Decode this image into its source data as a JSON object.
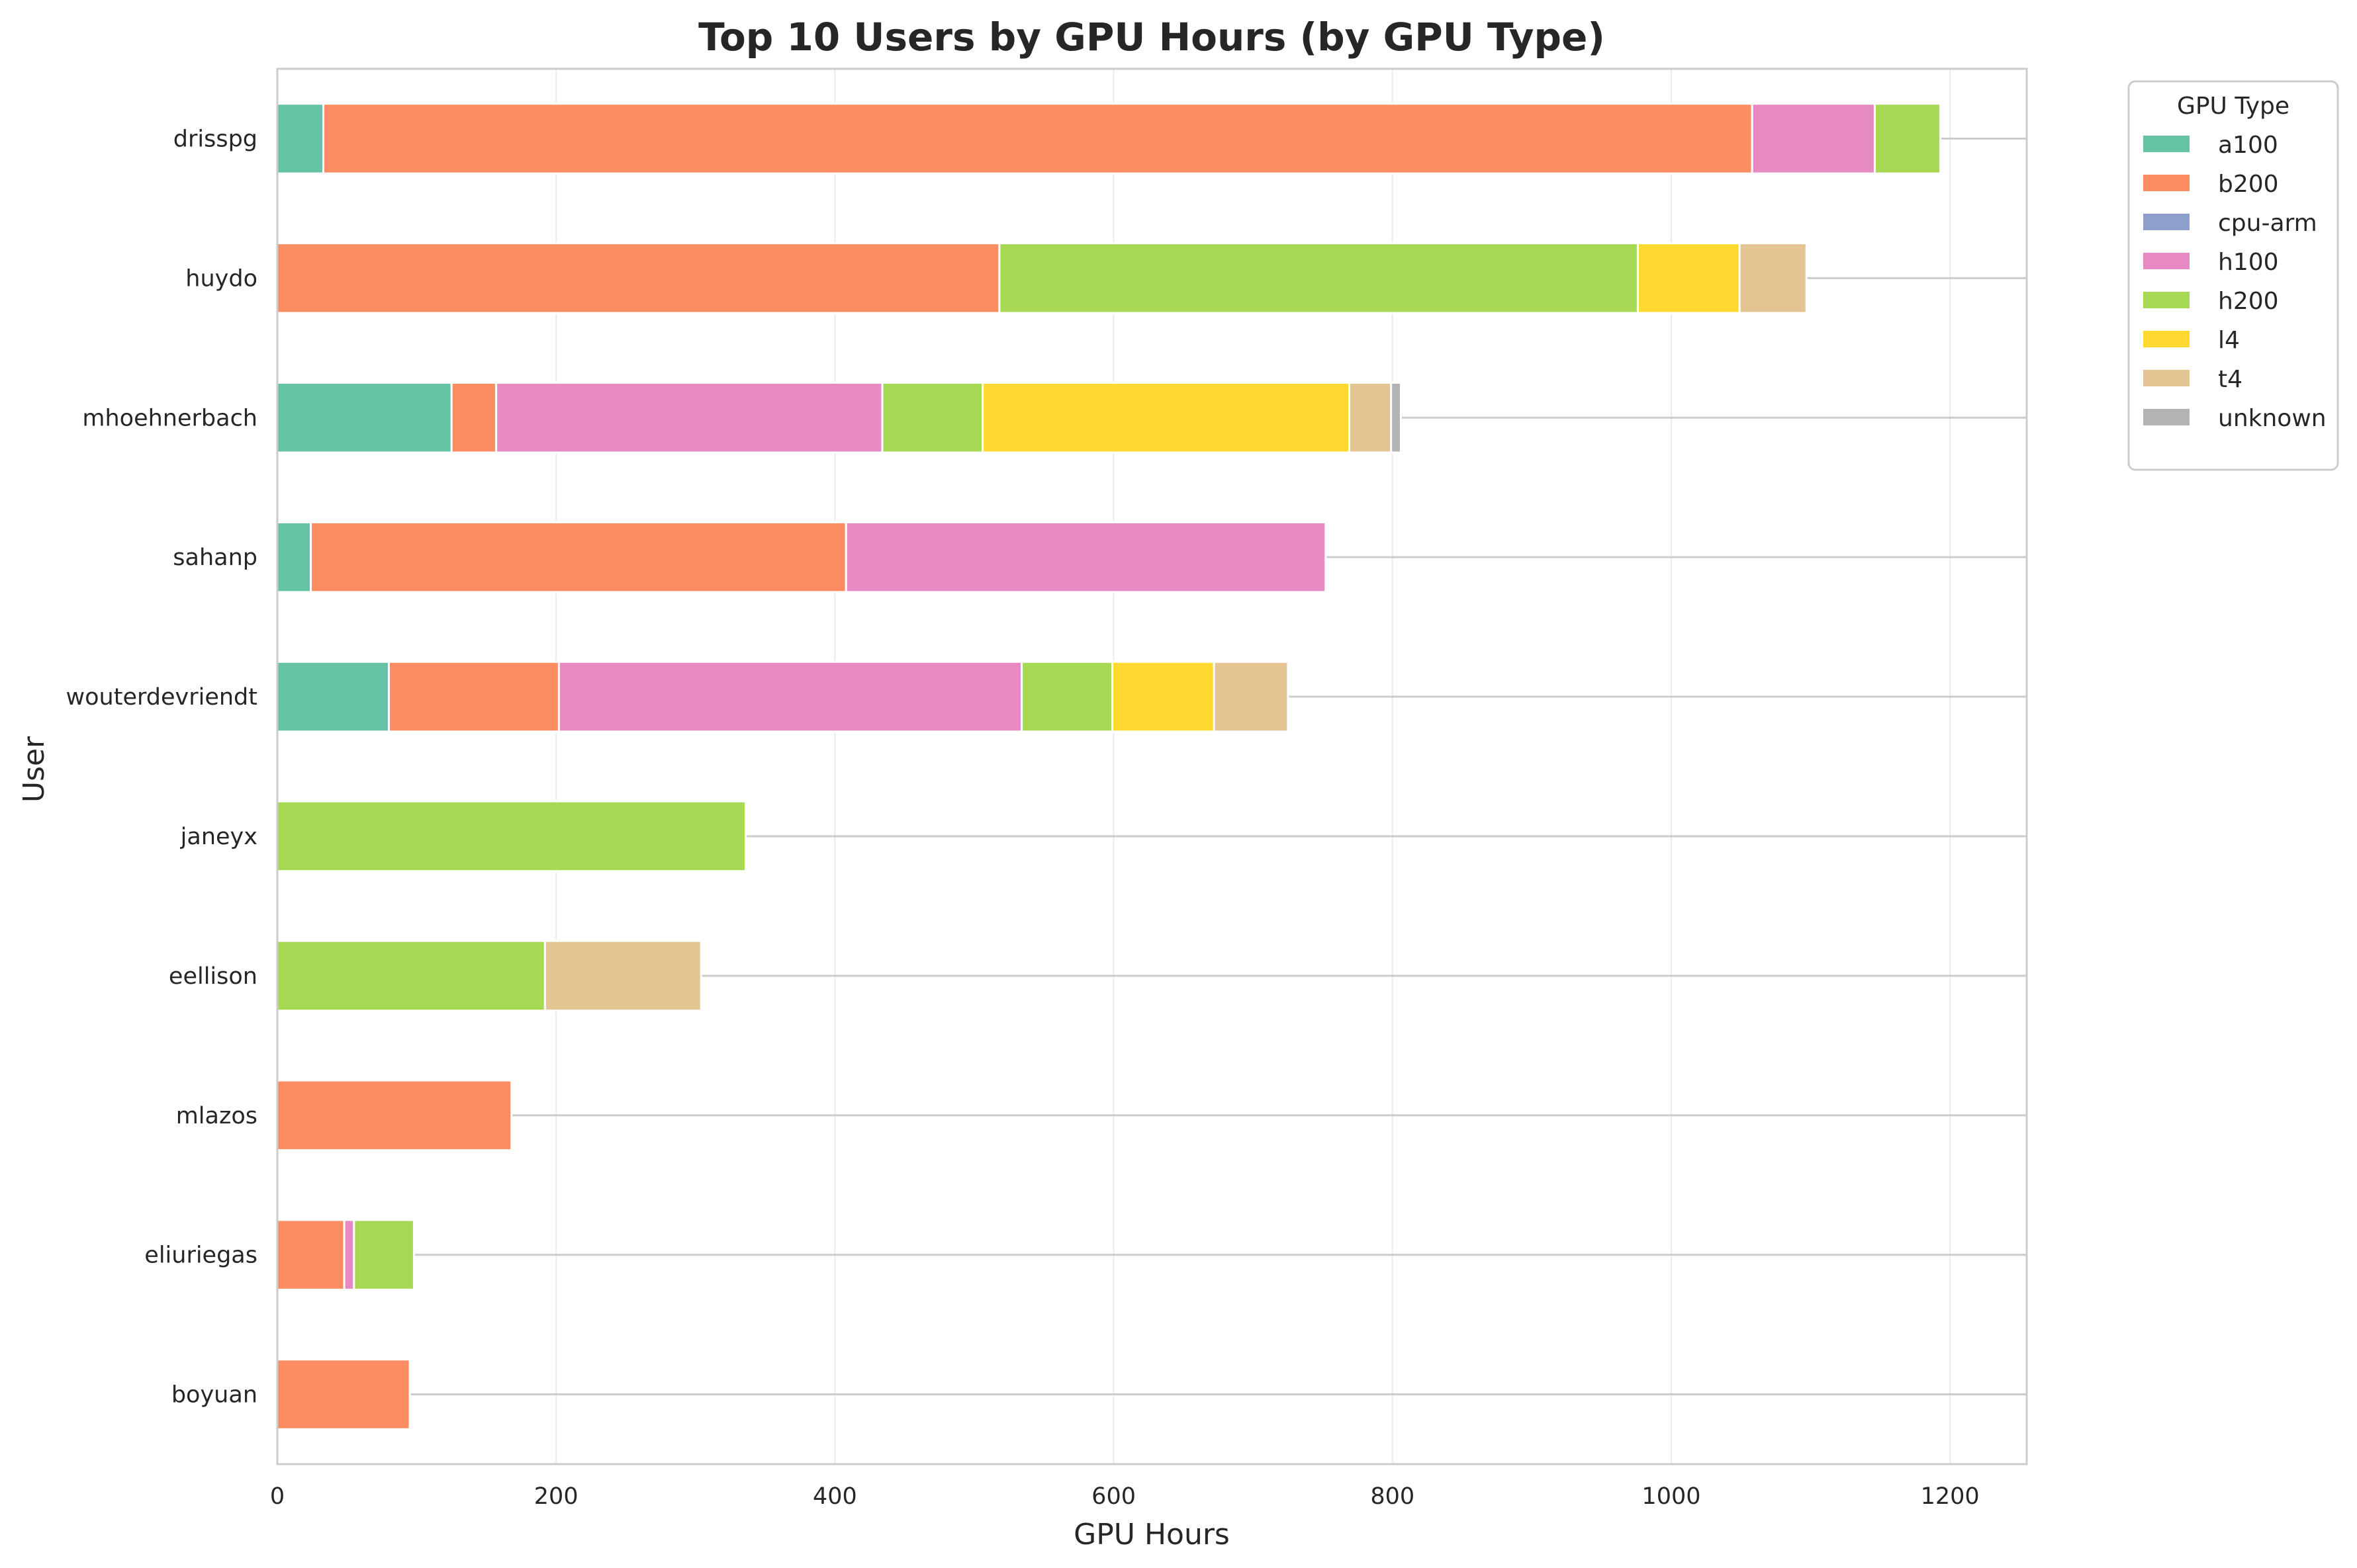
{
  "chart_data": {
    "type": "bar",
    "orientation": "horizontal",
    "stacked": true,
    "title": "Top 10 Users by GPU Hours (by GPU Type)",
    "xlabel": "GPU Hours",
    "ylabel": "User",
    "xlim": [
      0,
      1255
    ],
    "xticks": [
      0,
      200,
      400,
      600,
      800,
      1000,
      1200
    ],
    "grid": true,
    "legend": {
      "title": "GPU Type",
      "placement": "outside-top-right"
    },
    "categories": [
      "drisspg",
      "huydo",
      "mhoehnerbach",
      "sahanp",
      "wouterdevriendt",
      "janeyx",
      "eellison",
      "mlazos",
      "eliuriegas",
      "boyuan"
    ],
    "series": [
      {
        "name": "a100",
        "color": "#66c2a5",
        "values": [
          33,
          0,
          125,
          24,
          80,
          0,
          0,
          0,
          0,
          0
        ]
      },
      {
        "name": "b200",
        "color": "#fc8d62",
        "values": [
          1025,
          518,
          32,
          384,
          122,
          0,
          0,
          168,
          48,
          95
        ]
      },
      {
        "name": "cpu-arm",
        "color": "#8da0cb",
        "values": [
          0,
          0,
          0,
          0,
          0,
          0,
          0,
          0,
          0,
          0
        ]
      },
      {
        "name": "h100",
        "color": "#e78ac3",
        "values": [
          88,
          0,
          277,
          344,
          332,
          0,
          0,
          0,
          7,
          0
        ]
      },
      {
        "name": "h200",
        "color": "#a6d854",
        "values": [
          47,
          458,
          72,
          0,
          65,
          336,
          192,
          0,
          43,
          0
        ]
      },
      {
        "name": "l4",
        "color": "#ffd92f",
        "values": [
          0,
          73,
          263,
          0,
          73,
          0,
          0,
          0,
          0,
          0
        ]
      },
      {
        "name": "t4",
        "color": "#e5c494",
        "values": [
          0,
          48,
          30,
          0,
          53,
          0,
          112,
          0,
          0,
          0
        ]
      },
      {
        "name": "unknown",
        "color": "#b3b3b3",
        "values": [
          0,
          0,
          7,
          0,
          0,
          0,
          0,
          0,
          0,
          0
        ]
      }
    ]
  }
}
